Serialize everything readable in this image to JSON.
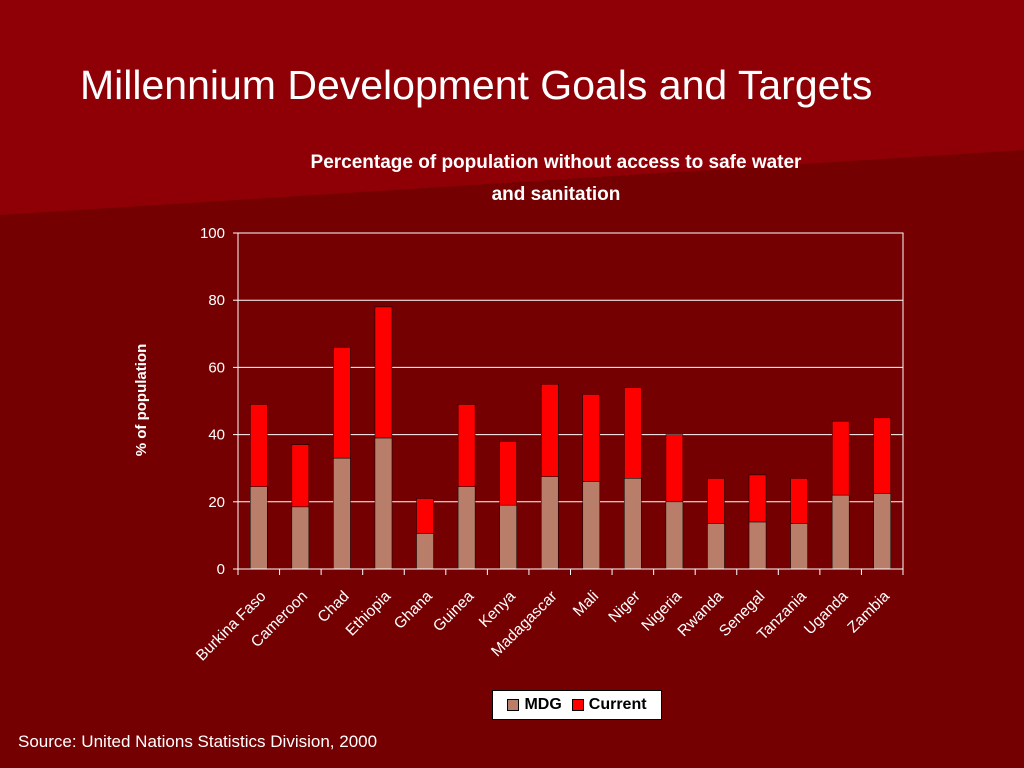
{
  "slide": {
    "title": "Millennium Development Goals and Targets",
    "source": "Source: United Nations Statistics Division, 2000"
  },
  "colors": {
    "background": "#740002",
    "highlight": "#8e0006",
    "mdg": "#b87e6a",
    "current": "#ff0000",
    "plot_background": "#740002",
    "gridline": "#ffffff"
  },
  "chart_data": {
    "type": "bar",
    "stacked": true,
    "title_lines": [
      "Percentage of population without access to safe water",
      "and sanitation"
    ],
    "ylabel": "% of population",
    "xlabel": "",
    "ylim": [
      0,
      100
    ],
    "yticks": [
      "0",
      "20",
      "40",
      "60",
      "80",
      "100"
    ],
    "grid": true,
    "categories": [
      "Burkina Faso",
      "Cameroon",
      "Chad",
      "Ethiopia",
      "Ghana",
      "Guinea",
      "Kenya",
      "Madagascar",
      "Mali",
      "Niger",
      "Nigeria",
      "Rwanda",
      "Senegal",
      "Tanzania",
      "Uganda",
      "Zambia"
    ],
    "series": [
      {
        "name": "MDG",
        "values": [
          24.5,
          18.5,
          33,
          39,
          10.5,
          24.5,
          19,
          27.5,
          26,
          27,
          20,
          13.5,
          14,
          13.5,
          22,
          22.5
        ]
      },
      {
        "name": "Current",
        "values": [
          24.5,
          18.5,
          33,
          39,
          10.5,
          24.5,
          19,
          27.5,
          26,
          27,
          20,
          13.5,
          14,
          13.5,
          22,
          22.5
        ]
      }
    ],
    "legend_position": "bottom"
  }
}
